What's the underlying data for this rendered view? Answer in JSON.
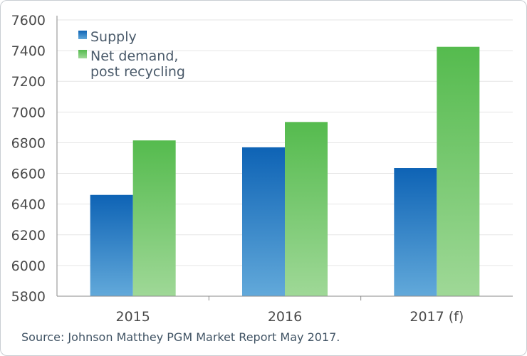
{
  "chart_data": {
    "type": "bar",
    "categories": [
      "2015",
      "2016",
      "2017 (f)"
    ],
    "series": [
      {
        "name": "Supply",
        "values": [
          6460,
          6770,
          6635
        ],
        "color": "#1a73be"
      },
      {
        "name": "Net demand, post recycling",
        "name_lines": [
          "Net demand,",
          "post recycling"
        ],
        "values": [
          6815,
          6935,
          7425
        ],
        "color": "#5cbf52"
      }
    ],
    "ylim": [
      5800,
      7600
    ],
    "yticks": [
      5800,
      6000,
      6200,
      6400,
      6600,
      6800,
      7000,
      7200,
      7400,
      7600
    ],
    "grid": true,
    "legend_position": "top-left",
    "xlabel": "",
    "ylabel": ""
  },
  "source_text": "Source:  Johnson Matthey PGM Market Report May 2017."
}
